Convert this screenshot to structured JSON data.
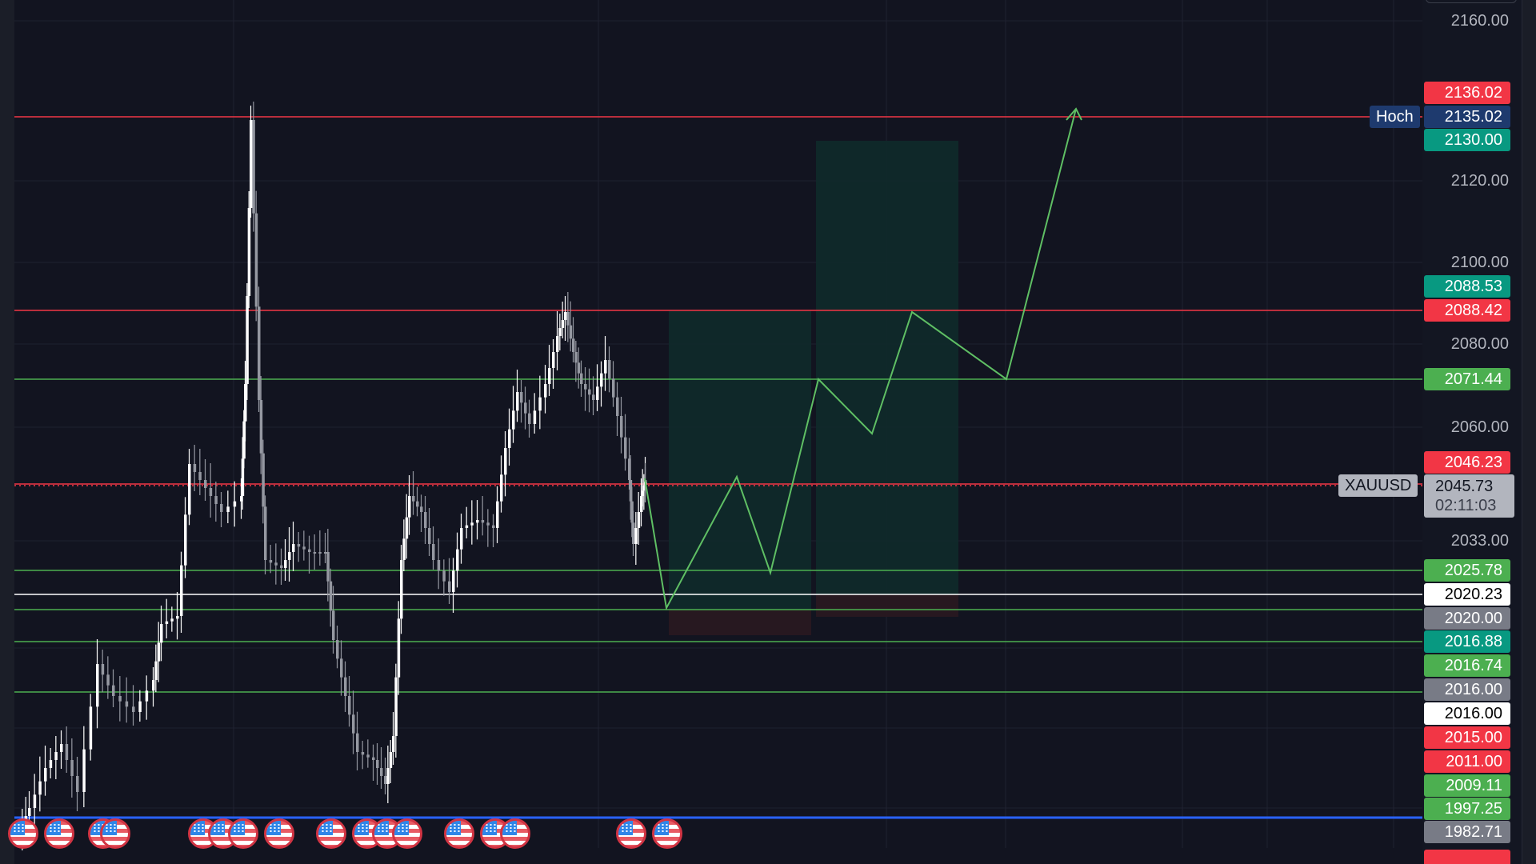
{
  "chart_data": {
    "type": "candlestick",
    "symbol": "XAUUSD",
    "title": "",
    "xlabel": "",
    "ylabel": "",
    "ylim": [
      1977,
      2164
    ],
    "grid": true,
    "y_ticks": [
      "2160.00",
      "2120.00",
      "2100.00",
      "2080.00",
      "2060.00",
      "2033.00"
    ],
    "current_price": {
      "symbol": "XAUUSD",
      "price": "2045.73",
      "countdown": "02:11:03"
    },
    "high_marker": {
      "label": "Hoch",
      "price": "2135.02"
    },
    "price_tags": [
      {
        "price": "2136.02",
        "color": "#f23645",
        "text_color": "#ffffff"
      },
      {
        "price": "2135.02",
        "color": "#1e3a6e",
        "text_color": "#ffffff"
      },
      {
        "price": "2130.00",
        "color": "#089981",
        "text_color": "#ffffff"
      },
      {
        "price": "2088.53",
        "color": "#089981",
        "text_color": "#ffffff"
      },
      {
        "price": "2088.42",
        "color": "#f23645",
        "text_color": "#ffffff"
      },
      {
        "price": "2071.44",
        "color": "#4caf50",
        "text_color": "#ffffff"
      },
      {
        "price": "2046.23",
        "color": "#f23645",
        "text_color": "#ffffff"
      },
      {
        "price": "2025.78",
        "color": "#4caf50",
        "text_color": "#ffffff"
      },
      {
        "price": "2020.23",
        "color": "#ffffff",
        "text_color": "#000000"
      },
      {
        "price": "2020.00",
        "color": "#787b86",
        "text_color": "#ffffff"
      },
      {
        "price": "2016.88",
        "color": "#089981",
        "text_color": "#ffffff"
      },
      {
        "price": "2016.74",
        "color": "#4caf50",
        "text_color": "#ffffff"
      },
      {
        "price": "2016.00",
        "color": "#787b86",
        "text_color": "#ffffff"
      },
      {
        "price": "2016.00",
        "color": "#ffffff",
        "text_color": "#000000"
      },
      {
        "price": "2015.00",
        "color": "#f23645",
        "text_color": "#ffffff"
      },
      {
        "price": "2011.00",
        "color": "#f23645",
        "text_color": "#ffffff"
      },
      {
        "price": "2009.11",
        "color": "#4caf50",
        "text_color": "#ffffff"
      },
      {
        "price": "1997.25",
        "color": "#4caf50",
        "text_color": "#ffffff"
      },
      {
        "price": "1982.71",
        "color": "#787b86",
        "text_color": "#ffffff"
      }
    ],
    "horizontal_lines": [
      {
        "price": 2135.02,
        "color": "#f23645"
      },
      {
        "price": 2088.42,
        "color": "#f23645"
      },
      {
        "price": 2071.44,
        "color": "#4caf50"
      },
      {
        "price": 2045.73,
        "color": "#f23645",
        "style": "dotted"
      },
      {
        "price": 2025.78,
        "color": "#4caf50"
      },
      {
        "price": 2020.23,
        "color": "#ffffff"
      },
      {
        "price": 2020.0,
        "color": "#4caf50"
      },
      {
        "price": 2016.88,
        "color": "#4caf50"
      },
      {
        "price": 2016.74,
        "color": "#4caf50"
      },
      {
        "price": 1997.25,
        "color": "#2962ff"
      }
    ],
    "position_boxes": [
      {
        "type": "long",
        "entry": 2020.0,
        "target": 2088.5,
        "stop": 2016.7
      },
      {
        "type": "long",
        "entry": 2020.2,
        "target": 2130.0,
        "stop": 2016.9
      }
    ],
    "projection_path": [
      2045.7,
      2020.0,
      2046.0,
      2025.8,
      2071.4,
      2060.0,
      2088.4,
      2071.4,
      2135.0
    ],
    "candle_colors": {
      "up": "#ffffff",
      "down": "#9598a1"
    },
    "event_flags": {
      "icon": "us-flag-icon",
      "count": 17
    }
  },
  "labels": {
    "hoch": "Hoch",
    "symbol": "XAUUSD",
    "price": "2045.73",
    "countdown": "02:11:03"
  }
}
